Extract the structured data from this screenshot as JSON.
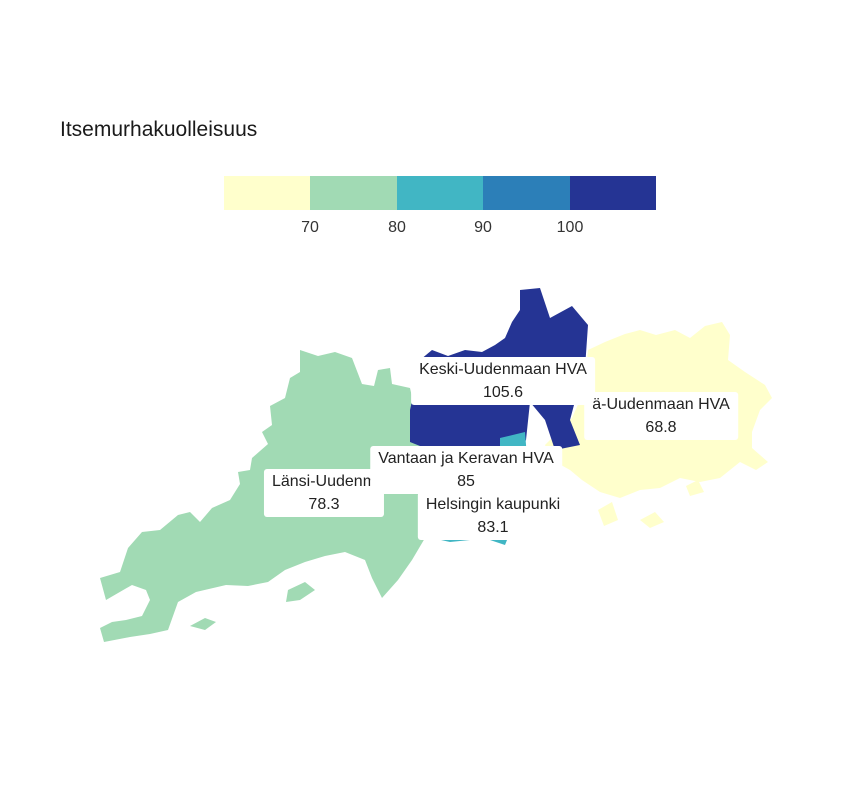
{
  "title": "Itsemurhakuolleisuus",
  "legend": {
    "colors": [
      "#ffffcc",
      "#a1dab4",
      "#41b6c4",
      "#2c7fb8",
      "#253494"
    ],
    "ticks": [
      "70",
      "80",
      "90",
      "100"
    ]
  },
  "regions": [
    {
      "name": "Länsi-Uudenmaan HVA",
      "label_text": "Länsi-Uudenm",
      "value": "78.3",
      "color": "#a1dab4"
    },
    {
      "name": "Keski-Uudenmaan HVA",
      "label_text": "Keski-Uudenmaan HVA",
      "value": "105.6",
      "color": "#253494"
    },
    {
      "name": "Itä-Uudenmaan HVA",
      "label_text": "ä-Uudenmaan HVA",
      "value": "68.8",
      "color": "#ffffcc"
    },
    {
      "name": "Vantaan ja Keravan HVA",
      "label_text": "Vantaan ja Keravan HVA",
      "value": "85",
      "color": "#41b6c4"
    },
    {
      "name": "Helsingin kaupunki",
      "label_text": "Helsingin kaupunki",
      "value": "83.1",
      "color": "#41b6c4"
    }
  ]
}
